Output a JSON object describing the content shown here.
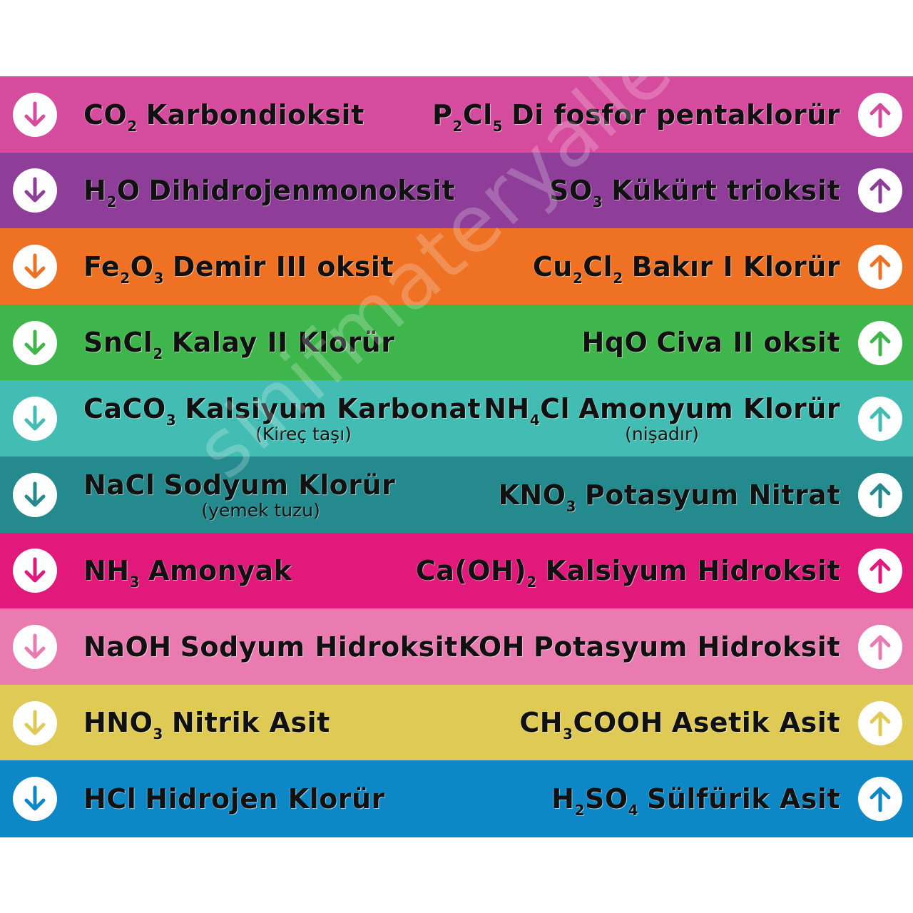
{
  "rows": [
    {
      "color": "#D54B9D",
      "left": {
        "formula": [
          {
            "t": "CO"
          },
          {
            "s": "2"
          }
        ],
        "name": "Karbondioksit",
        "note": ""
      },
      "right": {
        "formula": [
          {
            "t": "P"
          },
          {
            "s": "2"
          },
          {
            "t": "Cl"
          },
          {
            "s": "5"
          }
        ],
        "name": "Di fosfor pentaklorür",
        "note": ""
      }
    },
    {
      "color": "#8E3E98",
      "left": {
        "formula": [
          {
            "t": "H"
          },
          {
            "s": "2"
          },
          {
            "t": "O"
          }
        ],
        "name": "Dihidrojenmonoksit",
        "note": ""
      },
      "right": {
        "formula": [
          {
            "t": "SO"
          },
          {
            "s": "3"
          }
        ],
        "name": "Kükürt trioksit",
        "note": ""
      }
    },
    {
      "color": "#EE7124",
      "left": {
        "formula": [
          {
            "t": "Fe"
          },
          {
            "s": "2"
          },
          {
            "t": "O"
          },
          {
            "s": "3"
          }
        ],
        "name": "Demir III oksit",
        "note": ""
      },
      "right": {
        "formula": [
          {
            "t": "Cu"
          },
          {
            "s": "2"
          },
          {
            "t": "Cl"
          },
          {
            "s": "2"
          }
        ],
        "name": "Bakır I Klorür",
        "note": ""
      }
    },
    {
      "color": "#3FB64C",
      "left": {
        "formula": [
          {
            "t": "SnCl"
          },
          {
            "s": "2"
          }
        ],
        "name": "Kalay II Klorür",
        "note": ""
      },
      "right": {
        "formula": [
          {
            "t": "HqO"
          }
        ],
        "name": "Civa II oksit",
        "note": ""
      }
    },
    {
      "color": "#43BDB3",
      "left": {
        "formula": [
          {
            "t": "CaCO"
          },
          {
            "s": "3"
          }
        ],
        "name": "Kalsiyum Karbonat",
        "note": "(Kireç taşı)"
      },
      "right": {
        "formula": [
          {
            "t": "NH"
          },
          {
            "s": "4"
          },
          {
            "t": "Cl"
          }
        ],
        "name": "Amonyum Klorür",
        "note": "(nişadır)"
      }
    },
    {
      "color": "#248A8E",
      "left": {
        "formula": [
          {
            "t": "NaCl"
          }
        ],
        "name": "Sodyum Klorür",
        "note": "(yemek tuzu)"
      },
      "right": {
        "formula": [
          {
            "t": "KNO"
          },
          {
            "s": "3"
          }
        ],
        "name": "Potasyum Nitrat",
        "note": ""
      }
    },
    {
      "color": "#E0197A",
      "left": {
        "formula": [
          {
            "t": "NH"
          },
          {
            "s": "3"
          }
        ],
        "name": "Amonyak",
        "note": ""
      },
      "right": {
        "formula": [
          {
            "t": "Ca(OH)"
          },
          {
            "s": "2"
          }
        ],
        "name": "Kalsiyum Hidroksit",
        "note": ""
      }
    },
    {
      "color": "#EA7BB0",
      "left": {
        "formula": [
          {
            "t": "NaOH"
          }
        ],
        "name": "Sodyum Hidroksit",
        "note": ""
      },
      "right": {
        "formula": [
          {
            "t": "KOH"
          }
        ],
        "name": "Potasyum Hidroksit",
        "note": ""
      }
    },
    {
      "color": "#DECA55",
      "left": {
        "formula": [
          {
            "t": "HNO"
          },
          {
            "s": "3"
          }
        ],
        "name": "Nitrik Asit",
        "note": ""
      },
      "right": {
        "formula": [
          {
            "t": "CH"
          },
          {
            "s": "3"
          },
          {
            "t": "COOH"
          }
        ],
        "name": "Asetik Asit",
        "note": ""
      }
    },
    {
      "color": "#0D87C6",
      "left": {
        "formula": [
          {
            "t": "HCl"
          }
        ],
        "name": "Hidrojen Klorür",
        "note": ""
      },
      "right": {
        "formula": [
          {
            "t": "H"
          },
          {
            "s": "2"
          },
          {
            "t": "SO"
          },
          {
            "s": "4"
          }
        ],
        "name": "Sülfürik Asit",
        "note": ""
      }
    }
  ],
  "icons": {
    "left": "arrow-down-circle-icon",
    "right": "arrow-up-circle-icon"
  },
  "watermark": "sinifmateryalleri.com"
}
